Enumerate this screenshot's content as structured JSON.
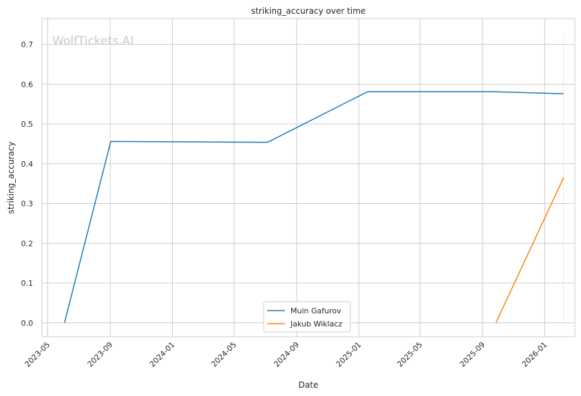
{
  "chart_data": {
    "type": "line",
    "title": "striking_accuracy over time",
    "xlabel": "Date",
    "ylabel": "striking_accuracy",
    "watermark": "WolfTickets.AI",
    "x_ticks": [
      "2023-05",
      "2023-09",
      "2024-01",
      "2024-05",
      "2024-09",
      "2025-01",
      "2025-05",
      "2025-09",
      "2026-01"
    ],
    "y_ticks": [
      0.0,
      0.1,
      0.2,
      0.3,
      0.4,
      0.5,
      0.6,
      0.7
    ],
    "ylim": [
      -0.035,
      0.765
    ],
    "xlim": [
      "2023-04-20",
      "2026-03-01"
    ],
    "grid": true,
    "legend_position": "lower-center",
    "series": [
      {
        "name": "Muin Gafurov",
        "color": "#1f77b4",
        "points": [
          {
            "x": "2023-06-03",
            "y": 0.0
          },
          {
            "x": "2023-09-02",
            "y": 0.456
          },
          {
            "x": "2024-07-06",
            "y": 0.454
          },
          {
            "x": "2025-01-18",
            "y": 0.581
          },
          {
            "x": "2025-09-27",
            "y": 0.581
          },
          {
            "x": "2026-02-07",
            "y": 0.576
          }
        ]
      },
      {
        "name": "Jakub Wiklacz",
        "color": "#ff7f0e",
        "points": [
          {
            "x": "2025-09-27",
            "y": 0.0
          },
          {
            "x": "2026-02-07",
            "y": 0.365
          }
        ]
      }
    ],
    "vertical_marker": {
      "x": "2026-02-07",
      "y_range": [
        0.0,
        0.73
      ],
      "color": "#ff7f0e"
    }
  }
}
